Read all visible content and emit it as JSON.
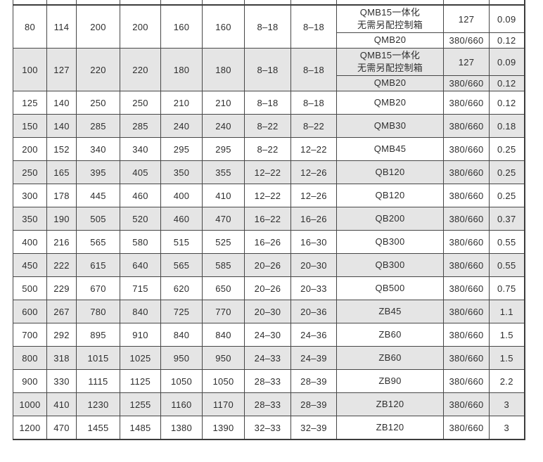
{
  "table": {
    "description_colors": {
      "shaded_row": "#e5e5e5",
      "border": "#474747",
      "text": "#2e2e2e"
    },
    "rows": [
      {
        "shaded": false,
        "cells": [
          "80",
          "114",
          "200",
          "200",
          "160",
          "160",
          "8–18",
          "8–18"
        ],
        "sub_rows": [
          {
            "model": "QMB15一体化\n无需另配控制箱",
            "voltage": "127",
            "power": "0.09"
          },
          {
            "model": "QMB20",
            "voltage": "380/660",
            "power": "0.12"
          }
        ]
      },
      {
        "shaded": true,
        "cells": [
          "100",
          "127",
          "220",
          "220",
          "180",
          "180",
          "8–18",
          "8–18"
        ],
        "sub_rows": [
          {
            "model": "QMB15一体化\n无需另配控制箱",
            "voltage": "127",
            "power": "0.09"
          },
          {
            "model": "QMB20",
            "voltage": "380/660",
            "power": "0.12"
          }
        ]
      },
      {
        "shaded": false,
        "cells": [
          "125",
          "140",
          "250",
          "250",
          "210",
          "210",
          "8–18",
          "8–18",
          "QMB20",
          "380/660",
          "0.12"
        ]
      },
      {
        "shaded": true,
        "cells": [
          "150",
          "140",
          "285",
          "285",
          "240",
          "240",
          "8–22",
          "8–22",
          "QMB30",
          "380/660",
          "0.18"
        ]
      },
      {
        "shaded": false,
        "cells": [
          "200",
          "152",
          "340",
          "340",
          "295",
          "295",
          "8–22",
          "12–22",
          "QMB45",
          "380/660",
          "0.25"
        ]
      },
      {
        "shaded": true,
        "cells": [
          "250",
          "165",
          "395",
          "405",
          "350",
          "355",
          "12–22",
          "12–26",
          "QB120",
          "380/660",
          "0.25"
        ]
      },
      {
        "shaded": false,
        "cells": [
          "300",
          "178",
          "445",
          "460",
          "400",
          "410",
          "12–22",
          "12–26",
          "QB120",
          "380/660",
          "0.25"
        ]
      },
      {
        "shaded": true,
        "cells": [
          "350",
          "190",
          "505",
          "520",
          "460",
          "470",
          "16–22",
          "16–26",
          "QB200",
          "380/660",
          "0.37"
        ]
      },
      {
        "shaded": false,
        "cells": [
          "400",
          "216",
          "565",
          "580",
          "515",
          "525",
          "16–26",
          "16–30",
          "QB300",
          "380/660",
          "0.55"
        ]
      },
      {
        "shaded": true,
        "cells": [
          "450",
          "222",
          "615",
          "640",
          "565",
          "585",
          "20–26",
          "20–30",
          "QB300",
          "380/660",
          "0.55"
        ]
      },
      {
        "shaded": false,
        "cells": [
          "500",
          "229",
          "670",
          "715",
          "620",
          "650",
          "20–26",
          "20–33",
          "QB500",
          "380/660",
          "0.75"
        ]
      },
      {
        "shaded": true,
        "cells": [
          "600",
          "267",
          "780",
          "840",
          "725",
          "770",
          "20–30",
          "20–36",
          "ZB45",
          "380/660",
          "1.1"
        ]
      },
      {
        "shaded": false,
        "cells": [
          "700",
          "292",
          "895",
          "910",
          "840",
          "840",
          "24–30",
          "24–36",
          "ZB60",
          "380/660",
          "1.5"
        ]
      },
      {
        "shaded": true,
        "cells": [
          "800",
          "318",
          "1015",
          "1025",
          "950",
          "950",
          "24–33",
          "24–39",
          "ZB60",
          "380/660",
          "1.5"
        ]
      },
      {
        "shaded": false,
        "cells": [
          "900",
          "330",
          "1115",
          "1125",
          "1050",
          "1050",
          "28–33",
          "28–39",
          "ZB90",
          "380/660",
          "2.2"
        ]
      },
      {
        "shaded": true,
        "cells": [
          "1000",
          "410",
          "1230",
          "1255",
          "1160",
          "1170",
          "28–33",
          "28–39",
          "ZB120",
          "380/660",
          "3"
        ]
      },
      {
        "shaded": false,
        "cells": [
          "1200",
          "470",
          "1455",
          "1485",
          "1380",
          "1390",
          "32–33",
          "32–39",
          "ZB120",
          "380/660",
          "3"
        ]
      }
    ]
  }
}
